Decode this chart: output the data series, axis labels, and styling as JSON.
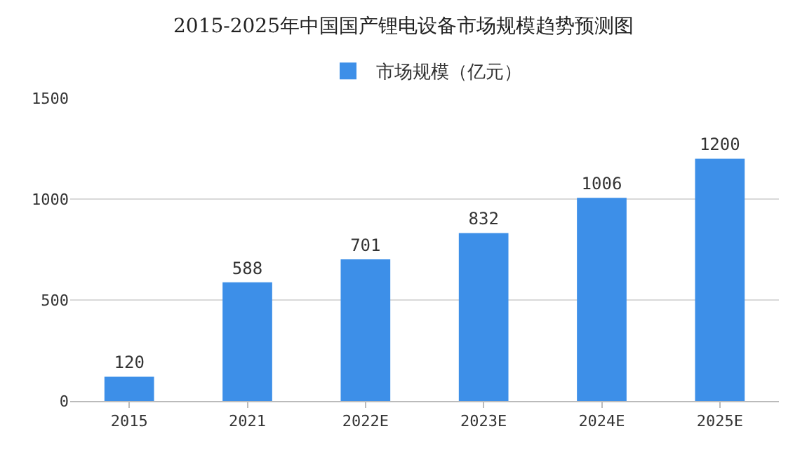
{
  "chart_data": {
    "type": "bar",
    "title": "2015-2025年中国国产锂电设备市场规模趋势预测图",
    "categories": [
      "2015",
      "2021",
      "2022E",
      "2023E",
      "2024E",
      "2025E"
    ],
    "series": [
      {
        "name": "市场规模（亿元）",
        "color": "#3d8fe8",
        "values": [
          120,
          588,
          701,
          832,
          1006,
          1200
        ]
      }
    ],
    "ylim": [
      0,
      1500
    ],
    "yticks": [
      0,
      500,
      1000,
      1500
    ],
    "grid": "y",
    "legend": "top",
    "data_labels": true
  }
}
